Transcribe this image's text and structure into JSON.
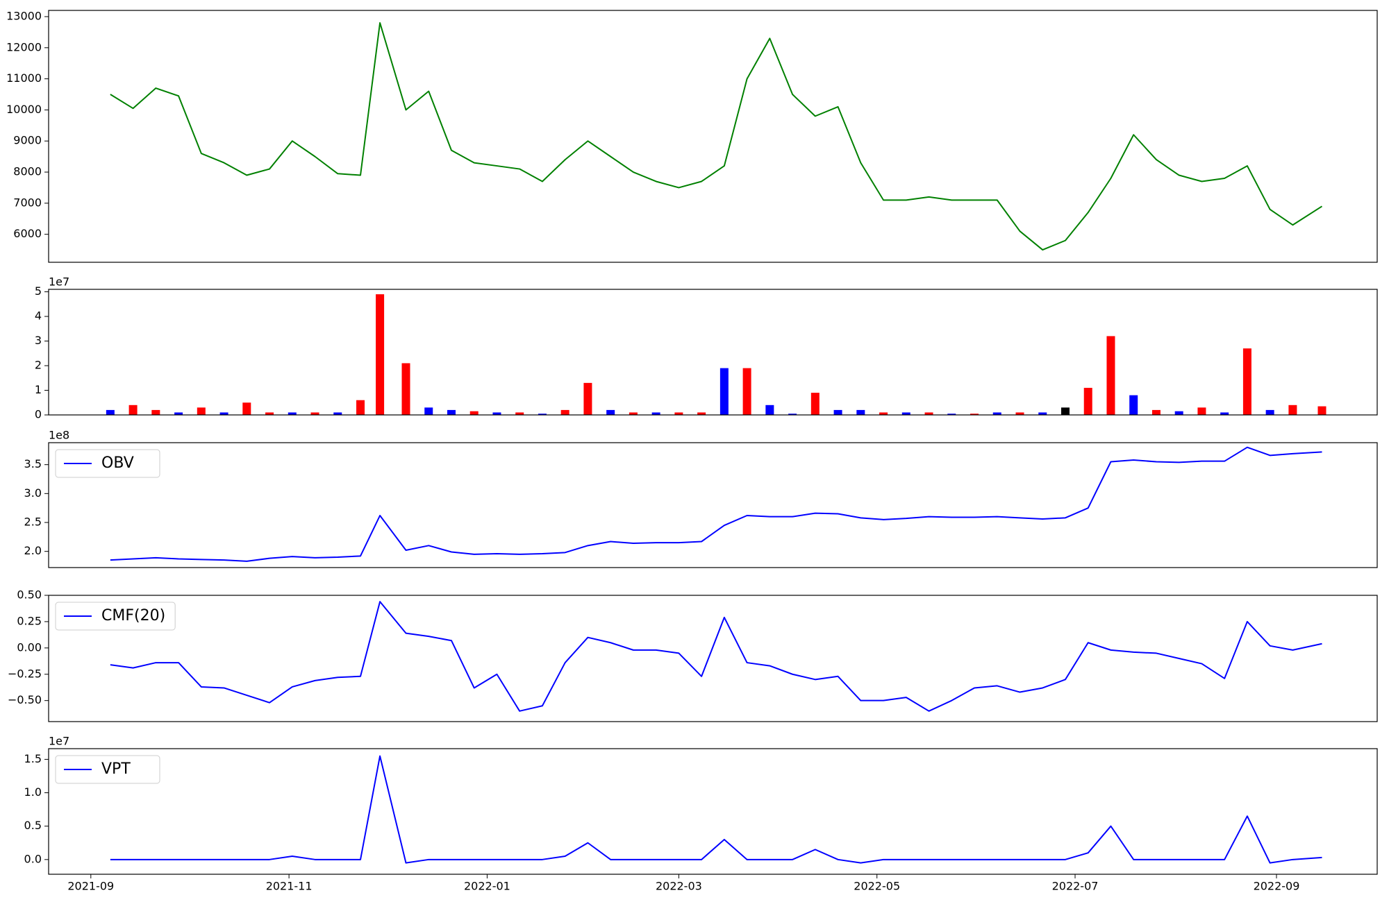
{
  "chart_data": [
    {
      "type": "line",
      "x": [
        "2021-09-07",
        "2021-09-14",
        "2021-09-21",
        "2021-09-28",
        "2021-10-05",
        "2021-10-12",
        "2021-10-19",
        "2021-10-26",
        "2021-11-02",
        "2021-11-09",
        "2021-11-16",
        "2021-11-23",
        "2021-11-29",
        "2021-12-07",
        "2021-12-14",
        "2021-12-21",
        "2021-12-28",
        "2022-01-04",
        "2022-01-11",
        "2022-01-18",
        "2022-01-25",
        "2022-02-01",
        "2022-02-08",
        "2022-02-15",
        "2022-02-22",
        "2022-03-01",
        "2022-03-08",
        "2022-03-15",
        "2022-03-22",
        "2022-03-29",
        "2022-04-05",
        "2022-04-12",
        "2022-04-19",
        "2022-04-26",
        "2022-05-03",
        "2022-05-10",
        "2022-05-17",
        "2022-05-24",
        "2022-05-31",
        "2022-06-07",
        "2022-06-14",
        "2022-06-21",
        "2022-06-28",
        "2022-07-05",
        "2022-07-12",
        "2022-07-19",
        "2022-07-26",
        "2022-08-02",
        "2022-08-09",
        "2022-08-16",
        "2022-08-23",
        "2022-08-30",
        "2022-09-06",
        "2022-09-15"
      ],
      "series": [
        {
          "color": "#008000",
          "values": [
            10500,
            10050,
            10700,
            10450,
            8600,
            8300,
            7900,
            8100,
            9000,
            8500,
            7950,
            7900,
            12800,
            10000,
            10600,
            8700,
            8300,
            8200,
            8100,
            7700,
            8400,
            9000,
            8500,
            8000,
            7700,
            7500,
            7700,
            8200,
            11000,
            12300,
            10500,
            9800,
            10100,
            8300,
            7100,
            7100,
            7200,
            7100,
            7100,
            7100,
            6100,
            5500,
            5800,
            6700,
            7800,
            9200,
            8400,
            7900,
            7700,
            7800,
            8200,
            6800,
            6300,
            6900
          ]
        }
      ],
      "xlim": [
        "2021-08-19",
        "2022-10-02"
      ],
      "ylim": [
        5100,
        13200
      ],
      "yticks": [
        6000,
        7000,
        8000,
        9000,
        10000,
        11000,
        12000,
        13000
      ]
    },
    {
      "type": "bar",
      "x": [
        "2021-09-07",
        "2021-09-14",
        "2021-09-21",
        "2021-09-28",
        "2021-10-05",
        "2021-10-12",
        "2021-10-19",
        "2021-10-26",
        "2021-11-02",
        "2021-11-09",
        "2021-11-16",
        "2021-11-23",
        "2021-11-29",
        "2021-12-07",
        "2021-12-14",
        "2021-12-21",
        "2021-12-28",
        "2022-01-04",
        "2022-01-11",
        "2022-01-18",
        "2022-01-25",
        "2022-02-01",
        "2022-02-08",
        "2022-02-15",
        "2022-02-22",
        "2022-03-01",
        "2022-03-08",
        "2022-03-15",
        "2022-03-22",
        "2022-03-29",
        "2022-04-05",
        "2022-04-12",
        "2022-04-19",
        "2022-04-26",
        "2022-05-03",
        "2022-05-10",
        "2022-05-17",
        "2022-05-24",
        "2022-05-31",
        "2022-06-07",
        "2022-06-14",
        "2022-06-21",
        "2022-06-28",
        "2022-07-05",
        "2022-07-12",
        "2022-07-19",
        "2022-07-26",
        "2022-08-02",
        "2022-08-09",
        "2022-08-16",
        "2022-08-23",
        "2022-08-30",
        "2022-09-06",
        "2022-09-15"
      ],
      "values": [
        0.2,
        0.4,
        0.2,
        0.1,
        0.3,
        0.1,
        0.5,
        0.1,
        0.1,
        0.1,
        0.1,
        0.6,
        4.9,
        2.1,
        0.3,
        0.2,
        0.15,
        0.1,
        0.1,
        0.05,
        0.2,
        1.3,
        0.2,
        0.1,
        0.1,
        0.1,
        0.1,
        1.9,
        1.9,
        0.4,
        0.05,
        0.9,
        0.2,
        0.2,
        0.1,
        0.1,
        0.1,
        0.05,
        0.05,
        0.1,
        0.1,
        0.1,
        0.3,
        1.1,
        3.2,
        0.8,
        0.2,
        0.15,
        0.3,
        0.1,
        2.7,
        0.2,
        0.4,
        0.35
      ],
      "colors": [
        "#0000ff",
        "#ff0000",
        "#ff0000",
        "#0000ff",
        "#ff0000",
        "#0000ff",
        "#ff0000",
        "#ff0000",
        "#0000ff",
        "#ff0000",
        "#0000ff",
        "#ff0000",
        "#ff0000",
        "#ff0000",
        "#0000ff",
        "#0000ff",
        "#ff0000",
        "#0000ff",
        "#ff0000",
        "#0000ff",
        "#ff0000",
        "#ff0000",
        "#0000ff",
        "#ff0000",
        "#0000ff",
        "#ff0000",
        "#ff0000",
        "#0000ff",
        "#ff0000",
        "#0000ff",
        "#0000ff",
        "#ff0000",
        "#0000ff",
        "#0000ff",
        "#ff0000",
        "#0000ff",
        "#ff0000",
        "#0000ff",
        "#ff0000",
        "#0000ff",
        "#ff0000",
        "#0000ff",
        "#000000",
        "#ff0000",
        "#ff0000",
        "#0000ff",
        "#ff0000",
        "#0000ff",
        "#ff0000",
        "#0000ff",
        "#ff0000",
        "#0000ff",
        "#ff0000",
        "#ff0000"
      ],
      "offset_label": "1e7",
      "xlim": [
        "2021-08-19",
        "2022-10-02"
      ],
      "ylim": [
        0,
        5.1
      ],
      "yticks": [
        0,
        1,
        2,
        3,
        4,
        5
      ]
    },
    {
      "type": "line",
      "x": [
        "2021-09-07",
        "2021-09-14",
        "2021-09-21",
        "2021-09-28",
        "2021-10-05",
        "2021-10-12",
        "2021-10-19",
        "2021-10-26",
        "2021-11-02",
        "2021-11-09",
        "2021-11-16",
        "2021-11-23",
        "2021-11-29",
        "2021-12-07",
        "2021-12-14",
        "2021-12-21",
        "2021-12-28",
        "2022-01-04",
        "2022-01-11",
        "2022-01-18",
        "2022-01-25",
        "2022-02-01",
        "2022-02-08",
        "2022-02-15",
        "2022-02-22",
        "2022-03-01",
        "2022-03-08",
        "2022-03-15",
        "2022-03-22",
        "2022-03-29",
        "2022-04-05",
        "2022-04-12",
        "2022-04-19",
        "2022-04-26",
        "2022-05-03",
        "2022-05-10",
        "2022-05-17",
        "2022-05-24",
        "2022-05-31",
        "2022-06-07",
        "2022-06-14",
        "2022-06-21",
        "2022-06-28",
        "2022-07-05",
        "2022-07-12",
        "2022-07-19",
        "2022-07-26",
        "2022-08-02",
        "2022-08-09",
        "2022-08-16",
        "2022-08-23",
        "2022-08-30",
        "2022-09-06",
        "2022-09-15"
      ],
      "series": [
        {
          "name": "OBV",
          "color": "#0000ff",
          "values": [
            1.85,
            1.87,
            1.89,
            1.87,
            1.86,
            1.85,
            1.83,
            1.88,
            1.91,
            1.89,
            1.9,
            1.92,
            2.62,
            2.02,
            2.1,
            1.99,
            1.95,
            1.96,
            1.95,
            1.96,
            1.98,
            2.1,
            2.17,
            2.14,
            2.15,
            2.15,
            2.17,
            2.45,
            2.62,
            2.6,
            2.6,
            2.66,
            2.65,
            2.58,
            2.55,
            2.57,
            2.6,
            2.59,
            2.59,
            2.6,
            2.58,
            2.56,
            2.58,
            2.75,
            3.55,
            3.58,
            3.55,
            3.54,
            3.56,
            3.56,
            3.8,
            3.66,
            3.69,
            3.72
          ]
        }
      ],
      "offset_label": "1e8",
      "legend": "upper left",
      "xlim": [
        "2021-08-19",
        "2022-10-02"
      ],
      "ylim": [
        1.72,
        3.88
      ],
      "yticks": [
        {
          "value": 2,
          "label": "2.0"
        },
        {
          "value": 2.5,
          "label": "2.5"
        },
        {
          "value": 3,
          "label": "3.0"
        },
        {
          "value": 3.5,
          "label": "3.5"
        }
      ]
    },
    {
      "type": "line",
      "x": [
        "2021-09-07",
        "2021-09-14",
        "2021-09-21",
        "2021-09-28",
        "2021-10-05",
        "2021-10-12",
        "2021-10-19",
        "2021-10-26",
        "2021-11-02",
        "2021-11-09",
        "2021-11-16",
        "2021-11-23",
        "2021-11-29",
        "2021-12-07",
        "2021-12-14",
        "2021-12-21",
        "2021-12-28",
        "2022-01-04",
        "2022-01-11",
        "2022-01-18",
        "2022-01-25",
        "2022-02-01",
        "2022-02-08",
        "2022-02-15",
        "2022-02-22",
        "2022-03-01",
        "2022-03-08",
        "2022-03-15",
        "2022-03-22",
        "2022-03-29",
        "2022-04-05",
        "2022-04-12",
        "2022-04-19",
        "2022-04-26",
        "2022-05-03",
        "2022-05-10",
        "2022-05-17",
        "2022-05-24",
        "2022-05-31",
        "2022-06-07",
        "2022-06-14",
        "2022-06-21",
        "2022-06-28",
        "2022-07-05",
        "2022-07-12",
        "2022-07-19",
        "2022-07-26",
        "2022-08-02",
        "2022-08-09",
        "2022-08-16",
        "2022-08-23",
        "2022-08-30",
        "2022-09-06",
        "2022-09-15"
      ],
      "series": [
        {
          "name": "CMF(20)",
          "color": "#0000ff",
          "values": [
            -0.16,
            -0.19,
            -0.14,
            -0.14,
            -0.37,
            -0.38,
            -0.45,
            -0.52,
            -0.37,
            -0.31,
            -0.28,
            -0.27,
            0.44,
            0.14,
            0.11,
            0.07,
            -0.38,
            -0.25,
            -0.6,
            -0.55,
            -0.14,
            0.1,
            0.05,
            -0.02,
            -0.02,
            -0.05,
            -0.27,
            0.29,
            -0.14,
            -0.17,
            -0.25,
            -0.3,
            -0.27,
            -0.5,
            -0.5,
            -0.47,
            -0.6,
            -0.5,
            -0.38,
            -0.36,
            -0.42,
            -0.38,
            -0.3,
            0.05,
            -0.02,
            -0.04,
            -0.05,
            -0.1,
            -0.15,
            -0.29,
            0.25,
            0.02,
            -0.02,
            0.04
          ]
        }
      ],
      "legend": "upper left",
      "xlim": [
        "2021-08-19",
        "2022-10-02"
      ],
      "ylim": [
        -0.7,
        0.5
      ],
      "yticks": [
        {
          "value": -0.5,
          "label": "−0.50"
        },
        {
          "value": -0.25,
          "label": "−0.25"
        },
        {
          "value": 0,
          "label": "0.00"
        },
        {
          "value": 0.25,
          "label": "0.25"
        },
        {
          "value": 0.5,
          "label": "0.50"
        }
      ]
    },
    {
      "type": "line",
      "x": [
        "2021-09-07",
        "2021-09-14",
        "2021-09-21",
        "2021-09-28",
        "2021-10-05",
        "2021-10-12",
        "2021-10-19",
        "2021-10-26",
        "2021-11-02",
        "2021-11-09",
        "2021-11-16",
        "2021-11-23",
        "2021-11-29",
        "2021-12-07",
        "2021-12-14",
        "2021-12-21",
        "2021-12-28",
        "2022-01-04",
        "2022-01-11",
        "2022-01-18",
        "2022-01-25",
        "2022-02-01",
        "2022-02-08",
        "2022-02-15",
        "2022-02-22",
        "2022-03-01",
        "2022-03-08",
        "2022-03-15",
        "2022-03-22",
        "2022-03-29",
        "2022-04-05",
        "2022-04-12",
        "2022-04-19",
        "2022-04-26",
        "2022-05-03",
        "2022-05-10",
        "2022-05-17",
        "2022-05-24",
        "2022-05-31",
        "2022-06-07",
        "2022-06-14",
        "2022-06-21",
        "2022-06-28",
        "2022-07-05",
        "2022-07-12",
        "2022-07-19",
        "2022-07-26",
        "2022-08-02",
        "2022-08-09",
        "2022-08-16",
        "2022-08-23",
        "2022-08-30",
        "2022-09-06",
        "2022-09-15"
      ],
      "series": [
        {
          "name": "VPT",
          "color": "#0000ff",
          "values": [
            0,
            0,
            0,
            0,
            0,
            0,
            0,
            0,
            0.05,
            0,
            0,
            0,
            1.55,
            -0.05,
            0,
            0,
            0,
            0,
            0,
            0,
            0.05,
            0.25,
            0,
            0,
            0,
            0,
            0,
            0.3,
            0,
            0,
            0,
            0.15,
            0,
            -0.05,
            0,
            0,
            0,
            0,
            0,
            0,
            0,
            0,
            0,
            0.1,
            0.5,
            0,
            0,
            0,
            0,
            0,
            0.65,
            -0.05,
            0,
            0.03
          ]
        }
      ],
      "offset_label": "1e7",
      "legend": "upper left",
      "xlim": [
        "2021-08-19",
        "2022-10-02"
      ],
      "ylim": [
        -0.22,
        1.66
      ],
      "yticks": [
        {
          "value": 0,
          "label": "0.0"
        },
        {
          "value": 0.5,
          "label": "0.5"
        },
        {
          "value": 1,
          "label": "1.0"
        },
        {
          "value": 1.5,
          "label": "1.5"
        }
      ],
      "xticks": [
        {
          "value": "2021-09-01",
          "label": "2021-09"
        },
        {
          "value": "2021-11-01",
          "label": "2021-11"
        },
        {
          "value": "2022-01-01",
          "label": "2022-01"
        },
        {
          "value": "2022-03-01",
          "label": "2022-03"
        },
        {
          "value": "2022-05-01",
          "label": "2022-05"
        },
        {
          "value": "2022-07-01",
          "label": "2022-07"
        },
        {
          "value": "2022-09-01",
          "label": "2022-09"
        }
      ]
    }
  ]
}
